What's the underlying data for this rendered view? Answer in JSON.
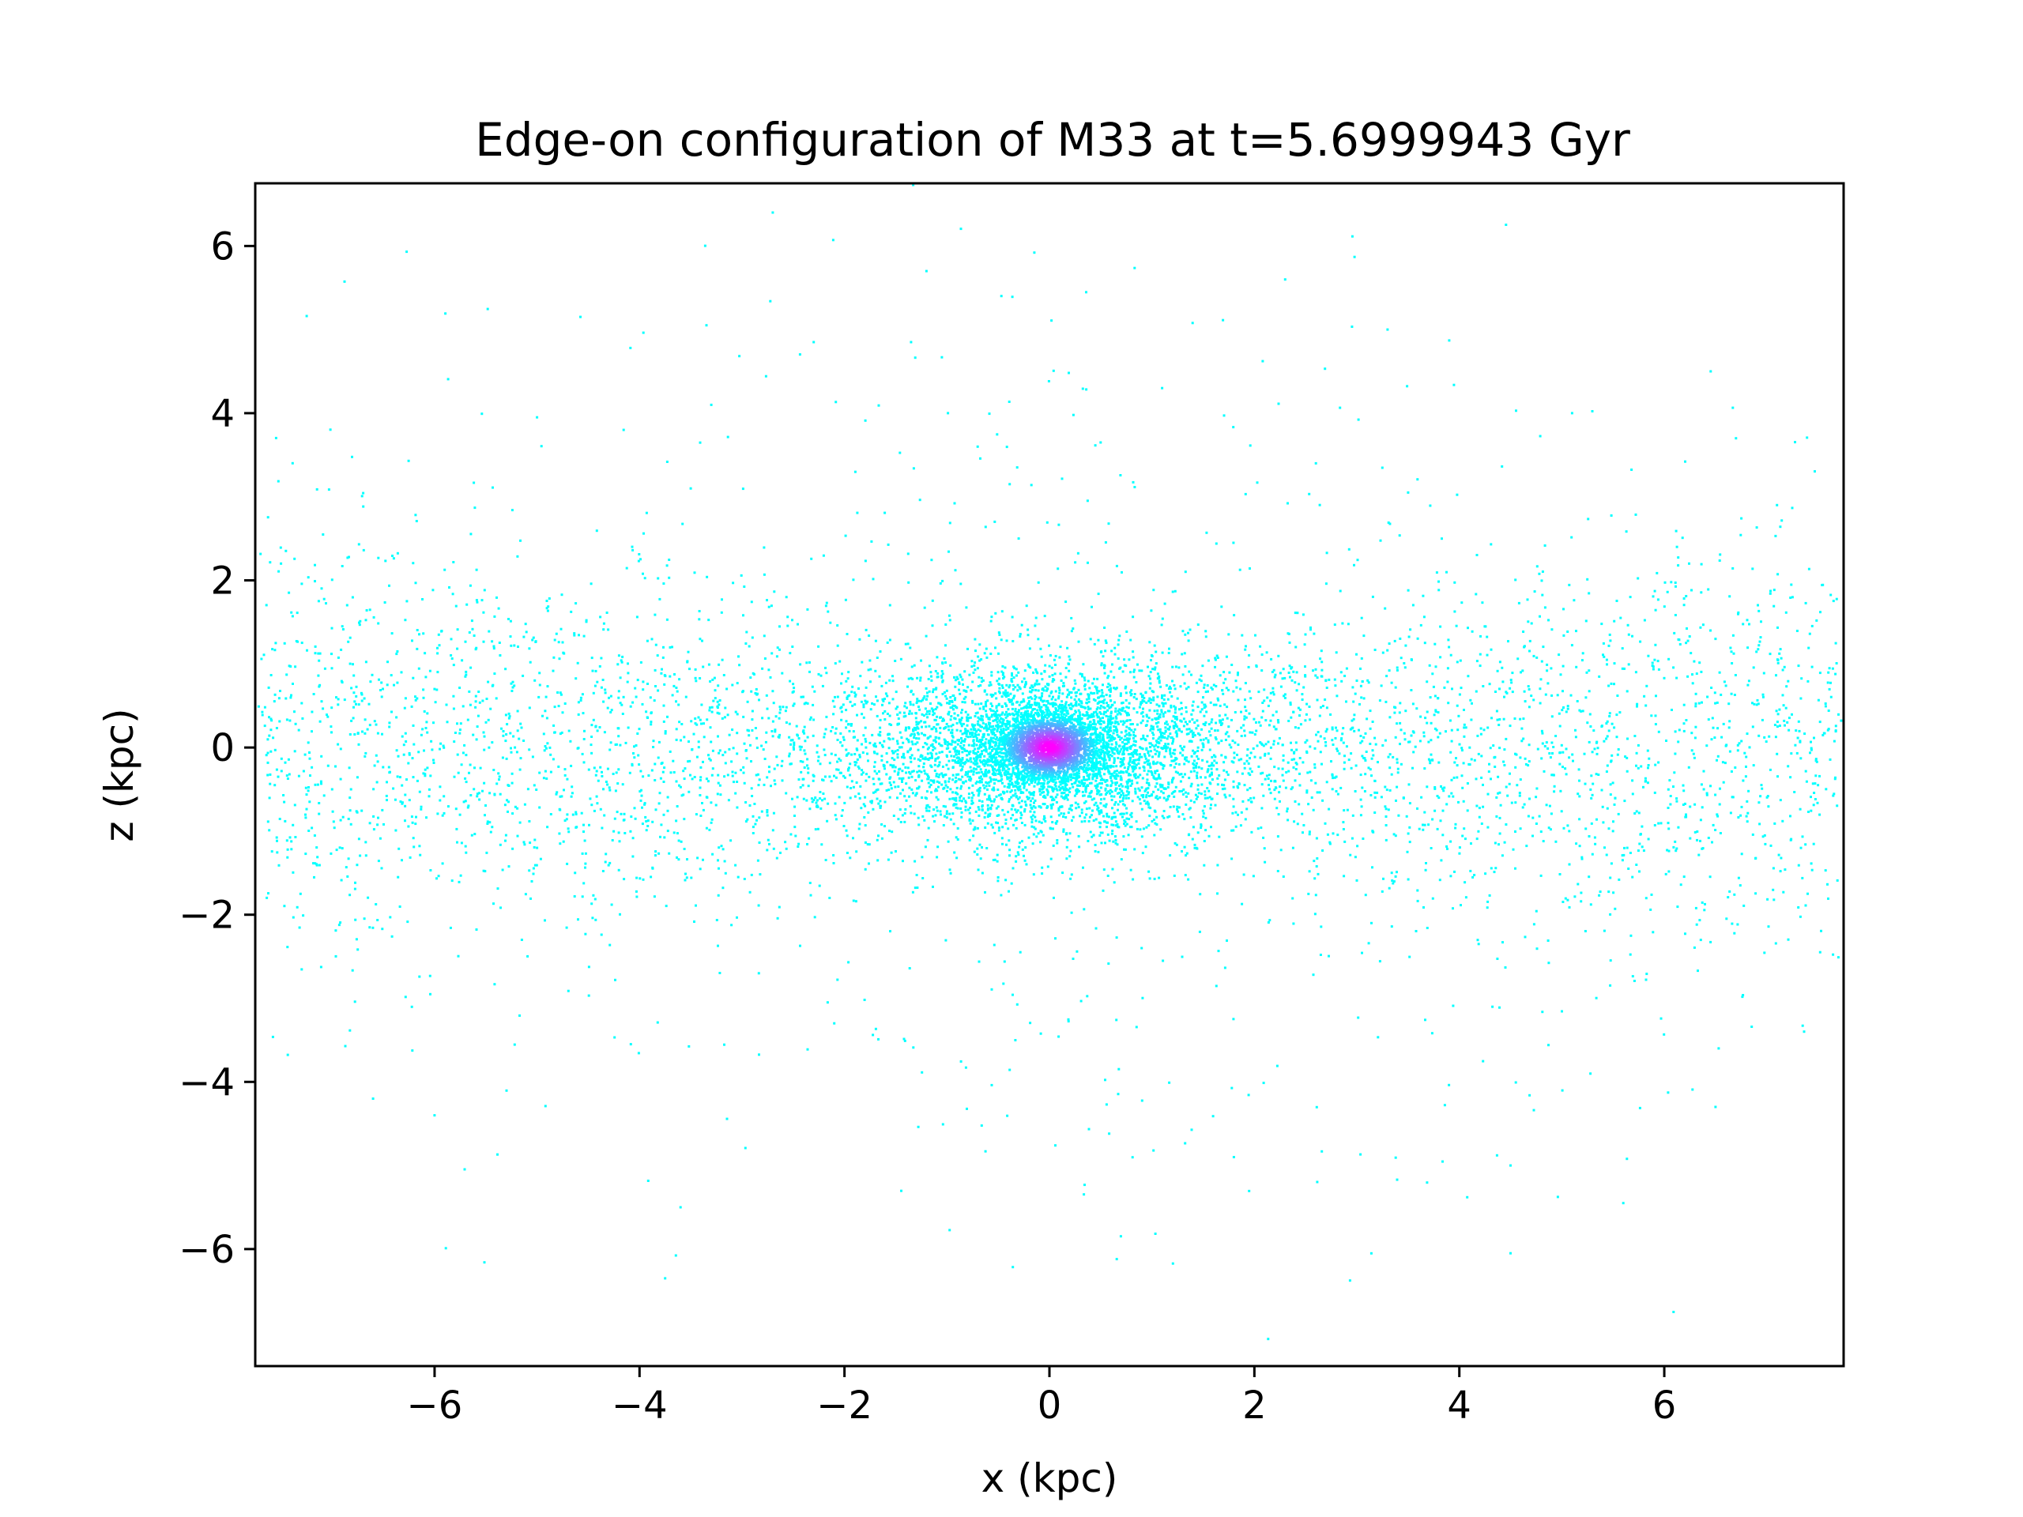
{
  "chart_data": {
    "type": "scatter",
    "title": "Edge-on configuration of M33 at t=5.6999943 Gyr",
    "xlabel": "x (kpc)",
    "ylabel": "z (kpc)",
    "xlim": [
      -7.75,
      7.75
    ],
    "ylim": [
      -7.4,
      6.75
    ],
    "xticks": [
      -6,
      -4,
      -2,
      0,
      2,
      4,
      6
    ],
    "xtick_labels": [
      "−6",
      "−4",
      "−2",
      "0",
      "2",
      "4",
      "6"
    ],
    "yticks": [
      -6,
      -4,
      -2,
      0,
      2,
      4,
      6
    ],
    "ytick_labels": [
      "−6",
      "−4",
      "−2",
      "0",
      "2",
      "4",
      "6"
    ],
    "grid": false,
    "legend": "none",
    "colormap": "cool",
    "colors": {
      "low_density": "#00ffff",
      "high_density": "#ff00ff"
    },
    "series": [
      {
        "values": [
          {
            "x": 0.0,
            "z": 0.0
          },
          {
            "x": 0.15,
            "z": 0.1
          },
          {
            "x": -0.2,
            "z": -0.05
          },
          {
            "x": 0.1,
            "z": -0.2
          },
          {
            "x": -0.1,
            "z": 0.25
          },
          {
            "x": 0.3,
            "z": 0.05
          },
          {
            "x": -0.35,
            "z": 0.1
          },
          {
            "x": 0.05,
            "z": 0.35
          },
          {
            "x": -0.05,
            "z": -0.35
          },
          {
            "x": 0.6,
            "z": 0.2
          },
          {
            "x": -0.7,
            "z": -0.1
          },
          {
            "x": 1.0,
            "z": -0.3
          },
          {
            "x": -1.2,
            "z": 0.4
          },
          {
            "x": 1.5,
            "z": 0.6
          },
          {
            "x": -1.8,
            "z": -0.7
          },
          {
            "x": 2.2,
            "z": -0.4
          },
          {
            "x": -2.5,
            "z": 0.5
          },
          {
            "x": 3.0,
            "z": 0.8
          },
          {
            "x": -3.3,
            "z": -0.9
          },
          {
            "x": 3.8,
            "z": -0.6
          },
          {
            "x": -4.2,
            "z": 1.1
          },
          {
            "x": 4.6,
            "z": 0.9
          },
          {
            "x": -5.0,
            "z": -1.2
          },
          {
            "x": 5.5,
            "z": -1.0
          },
          {
            "x": -6.0,
            "z": 0.7
          },
          {
            "x": 6.5,
            "z": 1.3
          },
          {
            "x": -7.0,
            "z": -0.5
          },
          {
            "x": 7.2,
            "z": 0.3
          },
          {
            "x": -2.7,
            "z": 6.4
          },
          {
            "x": -1.2,
            "z": 5.7
          },
          {
            "x": 2.3,
            "z": 5.6
          },
          {
            "x": 3.3,
            "z": 5.0
          },
          {
            "x": -2.3,
            "z": 4.85
          },
          {
            "x": -1.35,
            "z": 4.85
          },
          {
            "x": -3.3,
            "z": 4.1
          },
          {
            "x": 1.1,
            "z": 4.3
          },
          {
            "x": 5.1,
            "z": 4.0
          },
          {
            "x": -5.0,
            "z": 3.95
          },
          {
            "x": 6.7,
            "z": 3.7
          },
          {
            "x": -3.75,
            "z": -6.35
          },
          {
            "x": 4.5,
            "z": -6.05
          },
          {
            "x": -3.6,
            "z": -5.5
          },
          {
            "x": 5.6,
            "z": -5.45
          },
          {
            "x": -6.6,
            "z": -4.2
          },
          {
            "x": 6.5,
            "z": -4.3
          },
          {
            "x": -6.0,
            "z": -4.4
          },
          {
            "x": 1.8,
            "z": -4.9
          },
          {
            "x": 4.5,
            "z": -5.0
          },
          {
            "x": -3.5,
            "z": 3.1
          },
          {
            "x": 3.5,
            "z": 3.05
          },
          {
            "x": -0.7,
            "z": 3.6
          },
          {
            "x": 0.5,
            "z": 3.65
          },
          {
            "x": -6.9,
            "z": 1.45
          },
          {
            "x": 7.1,
            "z": 2.9
          },
          {
            "x": -7.55,
            "z": 1.25
          },
          {
            "x": 7.5,
            "z": -0.45
          },
          {
            "x": -0.3,
            "z": 2.5
          },
          {
            "x": 0.9,
            "z": -2.4
          },
          {
            "x": -2.1,
            "z": -3.3
          },
          {
            "x": 2.6,
            "z": 3.4
          }
        ],
        "point_count_approx": 10000,
        "distribution": "dense central bulge near (0,0) with magenta core; cyan disk elongated along x (|x| up to ~7.7 kpc, |z| mostly within ~2 kpc); sparse halo up to |z| ~6.5 kpc"
      }
    ]
  }
}
